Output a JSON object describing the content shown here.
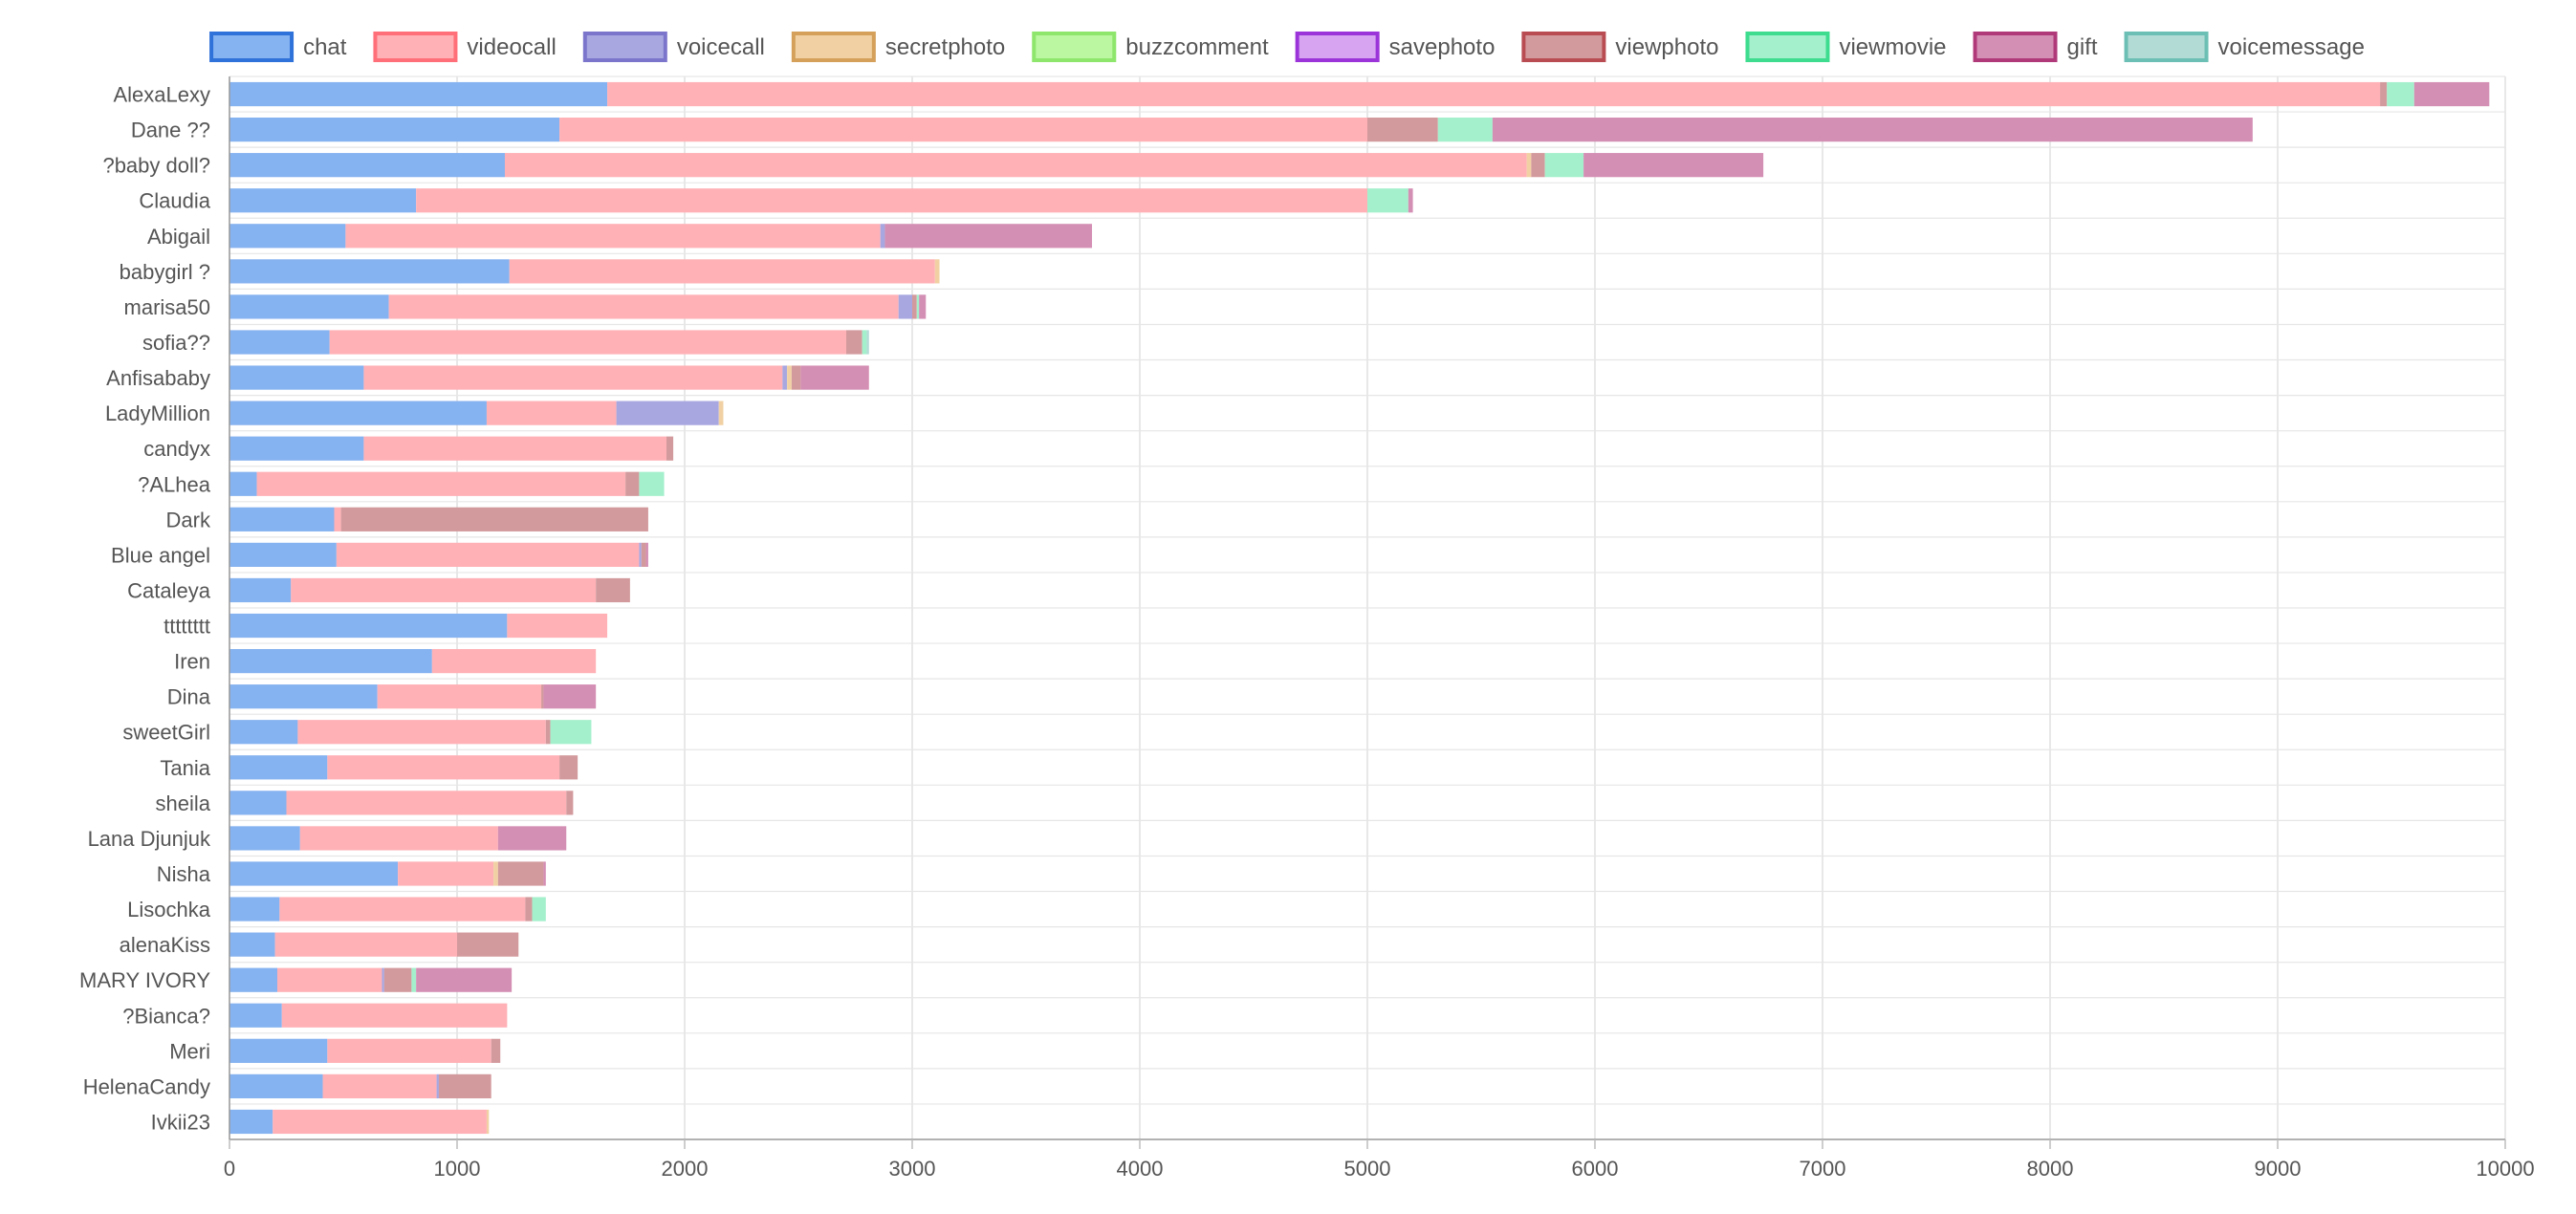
{
  "chart_data": {
    "type": "bar",
    "orientation": "horizontal",
    "stacked": true,
    "title": "",
    "xlabel": "",
    "ylabel": "",
    "xlim": [
      0,
      10000
    ],
    "x_ticks": [
      0,
      1000,
      2000,
      3000,
      4000,
      5000,
      6000,
      7000,
      8000,
      9000,
      10000
    ],
    "grid": true,
    "legend_position": "top",
    "categories": [
      "AlexaLexy",
      "Dane ??",
      "?baby doll?",
      "Claudia",
      "Abigail",
      "babygirl ?",
      "marisa50",
      "sofia??",
      "Anfisababy",
      "LadyMillion",
      "candyx",
      "?ALhea",
      "Dark",
      "Blue angel",
      "Cataleya",
      "tttttttt",
      "Iren",
      "Dina",
      "sweetGirl",
      "Tania",
      "sheila",
      "Lana Djunjuk",
      "Nisha",
      "Lisochka",
      "alenaKiss",
      "MARY IVORY",
      "?Bianca?",
      "Meri",
      "HelenaCandy",
      "Ivkii23"
    ],
    "series": [
      {
        "name": "chat",
        "fill": "#85b2f0",
        "border": "#2f72d9",
        "values": [
          1660,
          1450,
          1210,
          820,
          510,
          1230,
          700,
          440,
          590,
          1130,
          590,
          120,
          460,
          470,
          270,
          1220,
          890,
          650,
          300,
          430,
          250,
          310,
          740,
          220,
          200,
          210,
          230,
          430,
          410,
          190
        ]
      },
      {
        "name": "videocall",
        "fill": "#ffb1b6",
        "border": "#ff6f79",
        "values": [
          7790,
          3550,
          4490,
          4180,
          2350,
          1870,
          2240,
          2270,
          1840,
          570,
          1330,
          1620,
          30,
          1330,
          1340,
          440,
          720,
          720,
          1090,
          1020,
          1230,
          870,
          420,
          1080,
          800,
          460,
          990,
          720,
          500,
          940
        ]
      },
      {
        "name": "voicecall",
        "fill": "#a8a7e0",
        "border": "#7c75cc",
        "values": [
          0,
          0,
          0,
          0,
          20,
          0,
          60,
          0,
          20,
          450,
          0,
          0,
          0,
          10,
          0,
          0,
          0,
          0,
          0,
          0,
          0,
          0,
          0,
          0,
          0,
          10,
          0,
          0,
          10,
          0
        ]
      },
      {
        "name": "secretphoto",
        "fill": "#f1d1a4",
        "border": "#d4a05a",
        "values": [
          0,
          0,
          20,
          0,
          0,
          20,
          0,
          0,
          20,
          20,
          0,
          0,
          0,
          0,
          0,
          0,
          0,
          0,
          0,
          0,
          0,
          0,
          20,
          0,
          0,
          0,
          0,
          0,
          0,
          10
        ]
      },
      {
        "name": "buzzcomment",
        "fill": "#baf7a0",
        "border": "#8ee66c",
        "values": [
          0,
          0,
          0,
          0,
          0,
          0,
          0,
          0,
          0,
          0,
          0,
          0,
          0,
          0,
          0,
          0,
          0,
          0,
          0,
          0,
          0,
          0,
          0,
          0,
          0,
          0,
          0,
          0,
          0,
          0
        ]
      },
      {
        "name": "savephoto",
        "fill": "#d6a4f0",
        "border": "#9b34d9",
        "values": [
          0,
          0,
          0,
          0,
          0,
          0,
          0,
          0,
          0,
          0,
          0,
          0,
          0,
          0,
          0,
          0,
          0,
          0,
          0,
          0,
          0,
          0,
          0,
          0,
          0,
          0,
          0,
          0,
          0,
          0
        ]
      },
      {
        "name": "viewphoto",
        "fill": "#d39a9d",
        "border": "#b84c52",
        "values": [
          30,
          310,
          60,
          0,
          0,
          0,
          20,
          70,
          40,
          0,
          30,
          60,
          1350,
          20,
          150,
          0,
          0,
          10,
          20,
          80,
          30,
          0,
          200,
          30,
          270,
          120,
          0,
          40,
          230,
          0
        ]
      },
      {
        "name": "viewmovie",
        "fill": "#a4f0cc",
        "border": "#3ddc8e",
        "values": [
          120,
          240,
          170,
          180,
          0,
          0,
          10,
          20,
          0,
          0,
          0,
          110,
          0,
          0,
          0,
          0,
          0,
          0,
          180,
          0,
          0,
          0,
          0,
          60,
          0,
          20,
          0,
          0,
          0,
          0
        ]
      },
      {
        "name": "gift",
        "fill": "#d48fb4",
        "border": "#b0397a",
        "values": [
          330,
          3340,
          790,
          20,
          910,
          0,
          30,
          0,
          300,
          0,
          0,
          0,
          0,
          10,
          0,
          0,
          0,
          230,
          0,
          0,
          0,
          300,
          10,
          0,
          0,
          420,
          0,
          0,
          0,
          0
        ]
      },
      {
        "name": "voicemessage",
        "fill": "#b2dbd6",
        "border": "#6cbfb4",
        "values": [
          0,
          0,
          0,
          0,
          0,
          0,
          0,
          10,
          0,
          0,
          0,
          0,
          0,
          0,
          0,
          0,
          0,
          0,
          0,
          0,
          0,
          0,
          0,
          0,
          0,
          0,
          0,
          0,
          0,
          0
        ]
      }
    ]
  }
}
